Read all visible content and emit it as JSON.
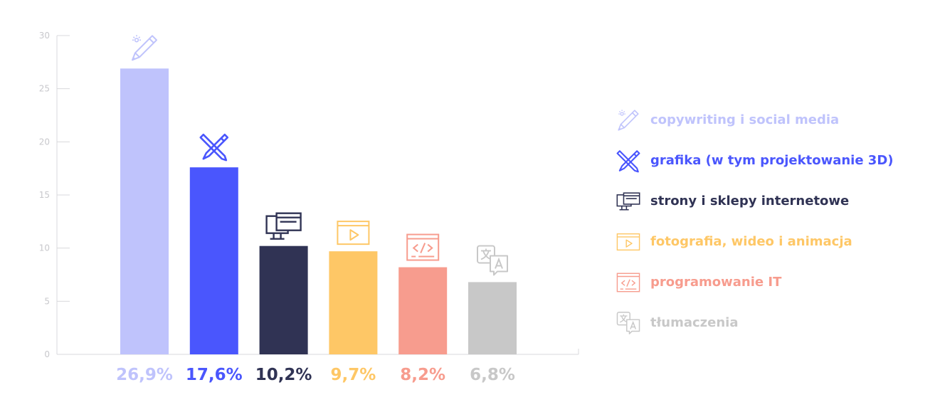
{
  "chart_data": {
    "type": "bar",
    "categories": [
      "copywriting i social media",
      "grafika (w tym projektowanie 3D)",
      "strony i sklepy internetowe",
      "fotografia, wideo i animacja",
      "programowanie IT",
      "tłumaczenia"
    ],
    "values": [
      26.9,
      17.6,
      10.2,
      9.7,
      8.2,
      6.8
    ],
    "value_labels": [
      "26,9%",
      "17,6%",
      "10,2%",
      "9,7%",
      "8,2%",
      "6,8%"
    ],
    "colors": [
      "#bfc3fc",
      "#4a56fd",
      "#303354",
      "#fec766",
      "#f79c8e",
      "#c8c8c8"
    ],
    "icons": [
      "pen-icon",
      "brush-pen-icon",
      "monitor-icon",
      "video-play-icon",
      "code-window-icon",
      "translate-icon"
    ],
    "yticks": [
      "0",
      "5",
      "10",
      "15",
      "20",
      "25",
      "30"
    ],
    "ylim": [
      0,
      30
    ],
    "grid": false,
    "legend_position": "right",
    "title": "",
    "xlabel": "",
    "ylabel": ""
  }
}
